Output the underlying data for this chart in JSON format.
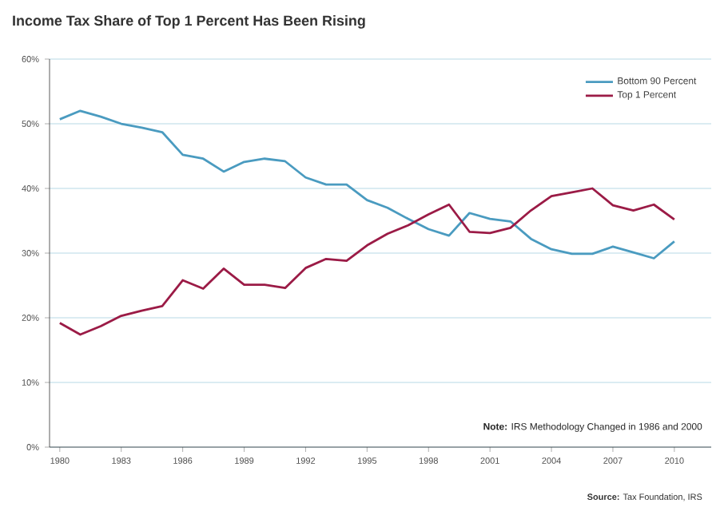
{
  "chart_data": {
    "type": "line",
    "title": "Income Tax Share of Top 1 Percent Has Been Rising",
    "x": [
      1980,
      1981,
      1982,
      1983,
      1984,
      1985,
      1986,
      1987,
      1988,
      1989,
      1990,
      1991,
      1992,
      1993,
      1994,
      1995,
      1996,
      1997,
      1998,
      1999,
      2000,
      2001,
      2002,
      2003,
      2004,
      2005,
      2006,
      2007,
      2008,
      2009,
      2010
    ],
    "series": [
      {
        "name": "Bottom 90 Percent",
        "color": "#4a9bc0",
        "values": [
          50.7,
          52.0,
          51.1,
          50.0,
          49.4,
          48.7,
          45.2,
          44.6,
          42.6,
          44.1,
          44.6,
          44.2,
          41.7,
          40.6,
          40.6,
          38.2,
          37.0,
          35.3,
          33.7,
          32.7,
          36.2,
          35.3,
          34.9,
          32.2,
          30.6,
          29.9,
          29.9,
          31.0,
          30.1,
          29.2,
          31.8
        ]
      },
      {
        "name": "Top 1 Percent",
        "color": "#9b1b46",
        "values": [
          19.2,
          17.4,
          18.7,
          20.3,
          21.1,
          21.8,
          25.8,
          24.5,
          27.6,
          25.1,
          25.1,
          24.6,
          27.7,
          29.1,
          28.8,
          31.2,
          33.0,
          34.3,
          36.0,
          37.5,
          33.3,
          33.1,
          33.9,
          36.6,
          38.8,
          39.4,
          40.0,
          37.4,
          36.6,
          37.5,
          35.2
        ]
      }
    ],
    "xlim": [
      1979.5,
      2011.8
    ],
    "ylim": [
      0,
      60
    ],
    "xticks": [
      1980,
      1983,
      1986,
      1989,
      1992,
      1995,
      1998,
      2001,
      2004,
      2007,
      2010
    ],
    "yticks": [
      {
        "value": 0,
        "label": "0%"
      },
      {
        "value": 10,
        "label": "10%"
      },
      {
        "value": 20,
        "label": "20%"
      },
      {
        "value": 30,
        "label": "30%"
      },
      {
        "value": 40,
        "label": "40%"
      },
      {
        "value": 50,
        "label": "50%"
      },
      {
        "value": 60,
        "label": "60%"
      }
    ],
    "grid": "y",
    "legend": "top right",
    "marker": "none",
    "line_style": "solid",
    "annotations": [
      "**Note:** IRS Methodology Changed in 1986 and 2000",
      "**Source:** Tax Foundation, IRS"
    ]
  }
}
